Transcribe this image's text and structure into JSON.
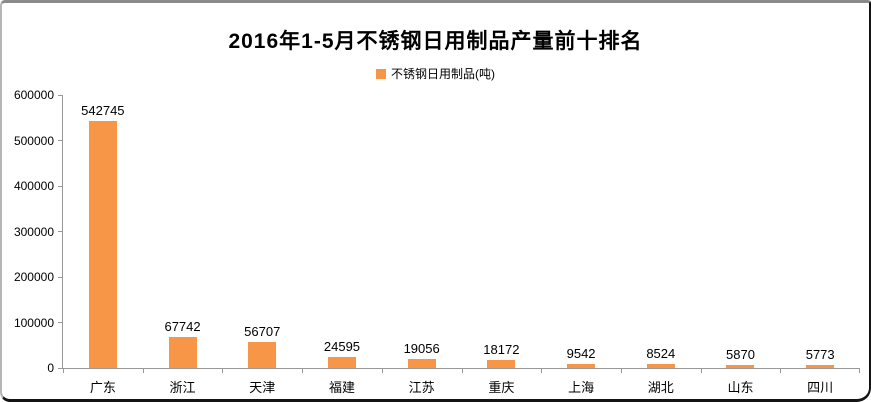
{
  "chart_data": {
    "type": "bar",
    "title": "2016年1-5月不锈钢日用制品产量前十排名",
    "legend": [
      "不锈钢日用制品(吨)"
    ],
    "legend_position": "top",
    "categories": [
      "广东",
      "浙江",
      "天津",
      "福建",
      "江苏",
      "重庆",
      "上海",
      "湖北",
      "山东",
      "四川"
    ],
    "values": [
      542745,
      67742,
      56707,
      24595,
      19056,
      18172,
      9542,
      8524,
      5870,
      5773
    ],
    "data_labels": [
      "542745",
      "67742",
      "56707",
      "24595",
      "19056",
      "18172",
      "9542",
      "8524",
      "5870",
      "5773"
    ],
    "ylim": [
      0,
      600000
    ],
    "yticks": [
      0,
      100000,
      200000,
      300000,
      400000,
      500000,
      600000
    ],
    "ytick_labels": [
      "0",
      "100000",
      "200000",
      "300000",
      "400000",
      "500000",
      "600000"
    ],
    "grid": false,
    "bar_color": "#F79646",
    "axis_color": "#989898",
    "text_color": "#000000"
  }
}
